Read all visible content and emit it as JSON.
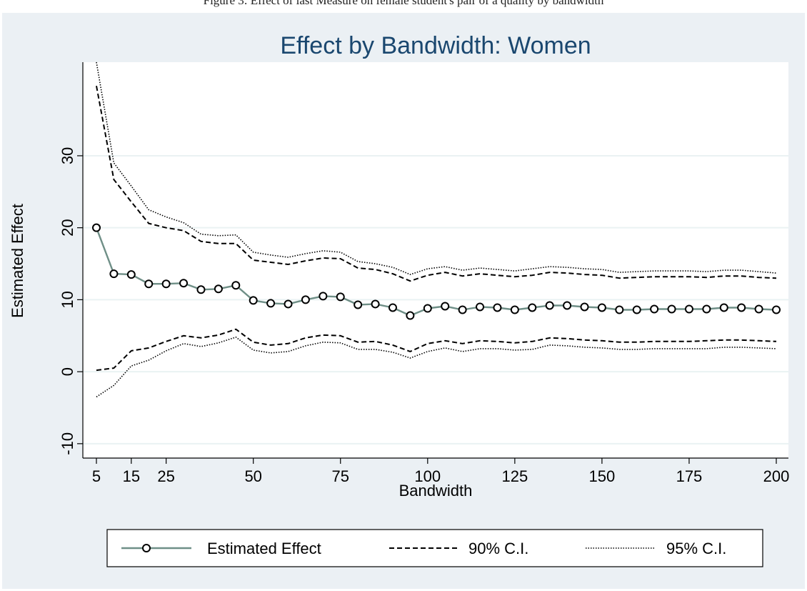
{
  "caption": "Figure 3: Effect of last Measure on female student's pair of a quality by bandwidth",
  "chart_data": {
    "type": "line",
    "title": "Effect by Bandwidth: Women",
    "xlabel": "Bandwidth",
    "ylabel": "Estimated Effect",
    "xlim": [
      5,
      200
    ],
    "ylim": [
      -12,
      43
    ],
    "xticks": [
      5,
      15,
      25,
      50,
      75,
      100,
      125,
      150,
      175,
      200
    ],
    "yticks": [
      -10,
      0,
      10,
      20,
      30
    ],
    "grid": true,
    "legend": "bottom",
    "x": [
      5,
      10,
      15,
      20,
      25,
      30,
      35,
      40,
      45,
      50,
      55,
      60,
      65,
      70,
      75,
      80,
      85,
      90,
      95,
      100,
      105,
      110,
      115,
      120,
      125,
      130,
      135,
      140,
      145,
      150,
      155,
      160,
      165,
      170,
      175,
      180,
      185,
      190,
      195,
      200
    ],
    "series": [
      {
        "name": "Estimated Effect",
        "style": "solid-marker",
        "color": "#6f8f87",
        "values": [
          20.0,
          13.6,
          13.5,
          12.2,
          12.2,
          12.3,
          11.4,
          11.5,
          12.0,
          9.9,
          9.5,
          9.4,
          10.0,
          10.5,
          10.4,
          9.3,
          9.4,
          8.9,
          7.8,
          8.8,
          9.1,
          8.6,
          9.0,
          8.9,
          8.6,
          8.9,
          9.2,
          9.2,
          9.0,
          8.9,
          8.6,
          8.6,
          8.7,
          8.7,
          8.7,
          8.7,
          8.9,
          8.9,
          8.7,
          8.6
        ]
      },
      {
        "name": "90% C.I.",
        "style": "dashed",
        "color": "#000000",
        "values": [
          0.2,
          0.5,
          2.9,
          3.3,
          4.2,
          5.0,
          4.7,
          5.1,
          5.9,
          4.1,
          3.7,
          3.9,
          4.7,
          5.1,
          5.0,
          4.1,
          4.2,
          3.7,
          2.8,
          3.9,
          4.3,
          3.9,
          4.3,
          4.2,
          4.0,
          4.2,
          4.7,
          4.6,
          4.4,
          4.3,
          4.1,
          4.1,
          4.2,
          4.2,
          4.2,
          4.3,
          4.4,
          4.4,
          4.3,
          4.2
        ]
      },
      {
        "name": "90% C.I.",
        "style": "dashed",
        "color": "#000000",
        "values": [
          39.7,
          26.7,
          23.6,
          20.6,
          20.0,
          19.6,
          18.1,
          17.8,
          17.8,
          15.5,
          15.2,
          14.9,
          15.4,
          15.8,
          15.7,
          14.4,
          14.2,
          13.6,
          12.6,
          13.4,
          13.8,
          13.3,
          13.6,
          13.4,
          13.2,
          13.4,
          13.8,
          13.7,
          13.5,
          13.4,
          13.0,
          13.1,
          13.2,
          13.2,
          13.2,
          13.1,
          13.3,
          13.3,
          13.1,
          13.0
        ]
      },
      {
        "name": "95% C.I.",
        "style": "dotted",
        "color": "#000000",
        "values": [
          -3.5,
          -1.9,
          0.8,
          1.6,
          2.9,
          3.9,
          3.5,
          4.0,
          4.8,
          3.0,
          2.6,
          2.8,
          3.6,
          4.1,
          4.0,
          3.1,
          3.1,
          2.7,
          1.9,
          2.8,
          3.3,
          2.8,
          3.2,
          3.2,
          3.0,
          3.1,
          3.7,
          3.6,
          3.4,
          3.3,
          3.1,
          3.1,
          3.2,
          3.2,
          3.2,
          3.2,
          3.4,
          3.4,
          3.3,
          3.2
        ]
      },
      {
        "name": "95% C.I.",
        "style": "dotted",
        "color": "#000000",
        "values": [
          43.0,
          29.0,
          25.8,
          22.5,
          21.5,
          20.7,
          19.1,
          18.9,
          19.0,
          16.6,
          16.2,
          15.9,
          16.4,
          16.8,
          16.6,
          15.3,
          15.0,
          14.5,
          13.5,
          14.3,
          14.6,
          14.1,
          14.4,
          14.2,
          14.0,
          14.3,
          14.6,
          14.5,
          14.3,
          14.2,
          13.8,
          13.9,
          14.0,
          14.0,
          14.0,
          13.9,
          14.1,
          14.1,
          13.9,
          13.7
        ]
      }
    ]
  }
}
